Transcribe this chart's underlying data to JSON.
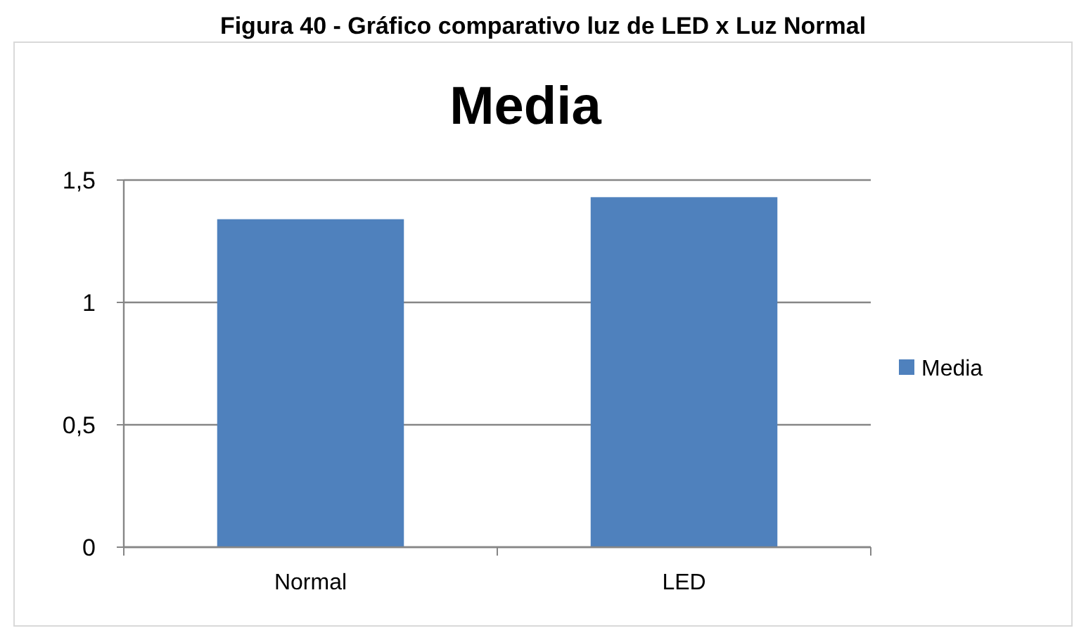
{
  "chart_data": {
    "type": "bar",
    "title": "Figura 40 - Gráfico comparativo luz de LED x Luz Normal",
    "subtitle": "Media",
    "categories": [
      "Normal",
      "LED"
    ],
    "series": [
      {
        "name": "Media",
        "color": "#4f81bd",
        "values": [
          1.34,
          1.43
        ]
      }
    ],
    "ylim": [
      0,
      1.5
    ],
    "yticks": [
      0,
      {
        "value": 0.5,
        "label": "0,5"
      },
      1,
      {
        "value": 1.5,
        "label": "1,5"
      }
    ],
    "grid": "y",
    "legend": "right"
  }
}
